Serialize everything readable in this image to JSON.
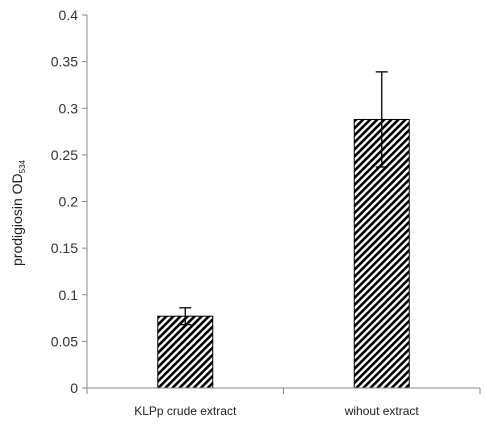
{
  "chart_data": {
    "type": "bar",
    "title": "",
    "xlabel": "",
    "ylabel": "prodigiosin OD",
    "ylabel_subscript": "534",
    "ylim": [
      0,
      0.4
    ],
    "yticks": [
      "0",
      "0.05",
      "0.1",
      "0.15",
      "0.2",
      "0.25",
      "0.3",
      "0.35",
      "0.4"
    ],
    "grid": false,
    "legend": "none",
    "categories": [
      "KLPp crude extract",
      "wihout extract"
    ],
    "values": [
      0.077,
      0.288
    ],
    "error_bars": [
      0.009,
      0.051
    ],
    "bar_pattern": "diagonal hatch",
    "colors": {
      "bar_stroke": "#000000",
      "hatch": "#000000",
      "axis": "#888888"
    }
  }
}
